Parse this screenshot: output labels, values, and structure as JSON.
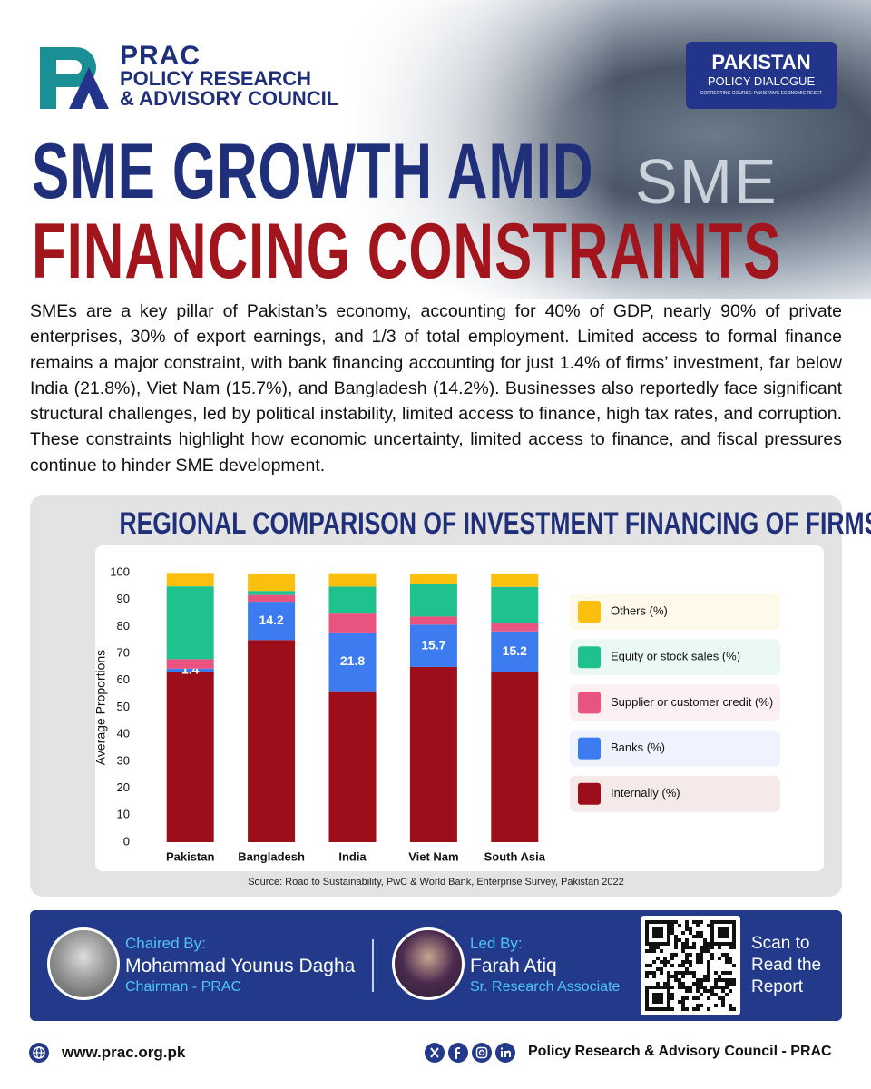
{
  "header": {
    "org_short": "PRAC",
    "org_name_1": "POLICY RESEARCH",
    "org_name_2": "& ADVISORY COUNCIL",
    "badge_title": "PAKISTAN",
    "badge_subtitle": "POLICY DIALOGUE",
    "badge_tagline": "CORRECTING COURSE: PAKISTAN'S ECONOMIC RESET",
    "background_word": "SME"
  },
  "title": {
    "line1": "SME GROWTH AMID",
    "line2": "FINANCING CONSTRAINTS"
  },
  "intro": "SMEs are a key pillar of Pakistan’s economy, accounting for 40% of GDP, nearly 90% of private enterprises, 30% of export earnings, and 1/3 of total employment. Limited access to formal finance remains a major constraint, with bank financing accounting for just 1.4% of firms’ investment, far below India (21.8%), Viet Nam (15.7%), and Bangladesh (14.2%). Businesses also reportedly face significant structural challenges, led by political instability, limited access to finance, high tax rates, and corruption. These constraints highlight how economic uncertainty, limited access to finance, and fiscal pressures continue to hinder SME development.",
  "chart_data": {
    "type": "stacked_bar",
    "title": "REGIONAL COMPARISON OF INVESTMENT FINANCING OF FIRMS",
    "y_label": "Average Proportions",
    "source": "Source: Road to Sustainability, PwC & World Bank, Enterprise Survey, Pakistan 2022",
    "categories": [
      "Pakistan",
      "Bangladesh",
      "India",
      "Viet Nam",
      "South Asia"
    ],
    "series": [
      {
        "name": "Internally (%)",
        "color": "#9b0e1a",
        "values": [
          63,
          75,
          56,
          65,
          63
        ]
      },
      {
        "name": "Banks (%)",
        "color": "#3d7cf0",
        "values": [
          1.4,
          14.2,
          21.8,
          15.7,
          15.2
        ],
        "data_labels": true
      },
      {
        "name": "Supplier or customer credit (%)",
        "color": "#e8547f",
        "values": [
          3.5,
          2.5,
          7,
          3,
          3
        ]
      },
      {
        "name": "Equity or stock sales (%)",
        "color": "#1fc28e",
        "values": [
          27,
          1.5,
          10,
          12,
          13.5
        ]
      },
      {
        "name": "Others (%)",
        "color": "#fbbf0e",
        "values": [
          5,
          6.5,
          5,
          4,
          5
        ]
      }
    ],
    "ylim": [
      0,
      100
    ],
    "yticks": [
      0,
      10,
      20,
      30,
      40,
      50,
      60,
      70,
      80,
      90,
      100
    ],
    "grid": false,
    "legend": "right"
  },
  "credits": {
    "chair_role": "Chaired By:",
    "chair_name": "Mohammad Younus Dagha",
    "chair_title": "Chairman - PRAC",
    "lead_role": "Led By:",
    "lead_name": "Farah Atiq",
    "lead_title": "Sr. Research Associate",
    "scan_text": "Scan to Read the Report"
  },
  "footer": {
    "url": "www.prac.org.pk",
    "org": "Policy Research & Advisory Council - PRAC"
  }
}
